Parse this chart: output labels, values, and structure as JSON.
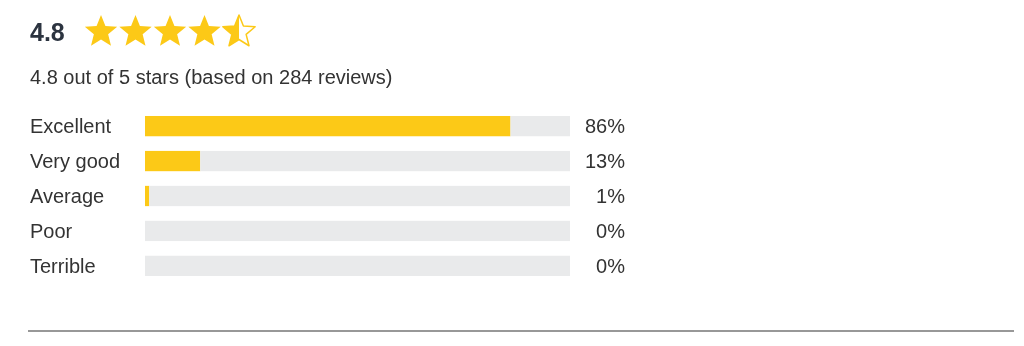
{
  "chart_data": {
    "type": "bar",
    "orientation": "horizontal",
    "stacked": true,
    "title": "4.8",
    "subtitle": "4.8 out of 5 stars (based on 284 reviews)",
    "categories": [
      "Excellent",
      "Very good",
      "Average",
      "Poor",
      "Terrible"
    ],
    "series": [
      {
        "color": "#fcc917",
        "values": [
          86,
          13,
          1,
          0,
          0
        ],
        "value_labels": [
          "86%",
          "13%",
          "1%",
          "0%",
          "0%"
        ]
      },
      {
        "color": "#e9eaeb",
        "values": [
          14,
          87,
          99,
          100,
          100
        ]
      }
    ],
    "xlim": [
      0,
      100
    ],
    "tick_labels": "y"
  }
}
